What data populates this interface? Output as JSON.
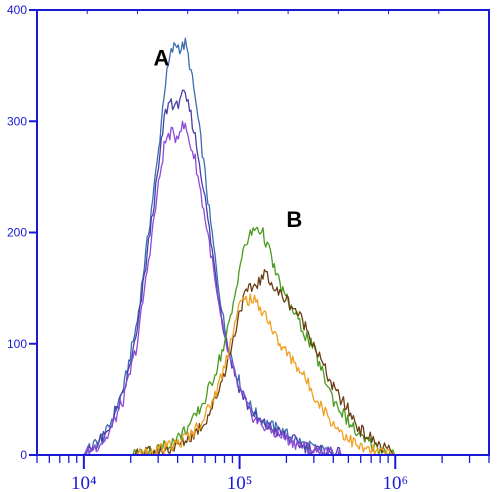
{
  "chart_data": {
    "type": "line",
    "title": "",
    "xlabel": "",
    "ylabel": "",
    "xscale": "log",
    "xlim": [
      5000,
      4000000
    ],
    "ylim": [
      0,
      400
    ],
    "grid": false,
    "legend": "none",
    "axis_color": "#1a1ad6",
    "x_ticks": [
      {
        "value": 10000,
        "label": "10⁴"
      },
      {
        "value": 100000,
        "label": "10⁵"
      },
      {
        "value": 1000000,
        "label": "10⁶"
      }
    ],
    "y_ticks": [
      {
        "value": 0,
        "label": "0"
      },
      {
        "value": 100,
        "label": "100"
      },
      {
        "value": 200,
        "label": "200"
      },
      {
        "value": 300,
        "label": "300"
      },
      {
        "value": 400,
        "label": "400"
      }
    ],
    "annotations": [
      {
        "text": "A",
        "x": 28000,
        "y": 350
      },
      {
        "text": "B",
        "x": 200000,
        "y": 205
      }
    ],
    "series": [
      {
        "color": "#3a6eb0",
        "x": [
          10000,
          14000,
          18000,
          22000,
          26000,
          30000,
          33000,
          36000,
          39000,
          42000,
          45000,
          48000,
          52000,
          58000,
          65000,
          72000,
          80000,
          90000,
          100000,
          115000,
          130000,
          150000,
          180000,
          220000,
          270000,
          350000,
          500000
        ],
        "y": [
          0,
          20,
          60,
          120,
          200,
          270,
          330,
          360,
          370,
          365,
          370,
          350,
          320,
          270,
          210,
          160,
          115,
          85,
          65,
          45,
          35,
          28,
          22,
          15,
          8,
          3,
          0
        ]
      },
      {
        "color": "#4a3ea8",
        "x": [
          10000,
          14000,
          18000,
          22000,
          26000,
          30000,
          33000,
          36000,
          39000,
          42000,
          45000,
          48000,
          52000,
          58000,
          65000,
          72000,
          80000,
          90000,
          100000,
          115000,
          130000,
          150000,
          180000,
          220000,
          270000,
          350000,
          500000
        ],
        "y": [
          0,
          18,
          55,
          110,
          190,
          255,
          305,
          320,
          310,
          325,
          320,
          310,
          285,
          245,
          195,
          150,
          110,
          80,
          60,
          42,
          32,
          26,
          20,
          13,
          7,
          2,
          0
        ]
      },
      {
        "color": "#8e4ad8",
        "x": [
          10000,
          14000,
          18000,
          22000,
          26000,
          30000,
          33000,
          36000,
          39000,
          42000,
          45000,
          48000,
          52000,
          58000,
          65000,
          72000,
          80000,
          90000,
          100000,
          115000,
          130000,
          150000,
          180000,
          220000,
          270000,
          350000,
          500000
        ],
        "y": [
          0,
          15,
          50,
          100,
          175,
          240,
          280,
          290,
          285,
          295,
          295,
          280,
          265,
          225,
          185,
          140,
          105,
          78,
          58,
          40,
          30,
          24,
          18,
          12,
          6,
          2,
          0
        ]
      },
      {
        "color": "#4a9a1e",
        "x": [
          20000,
          30000,
          40000,
          50000,
          60000,
          70000,
          80000,
          90000,
          100000,
          110000,
          120000,
          130000,
          140000,
          150000,
          165000,
          180000,
          200000,
          230000,
          260000,
          300000,
          350000,
          400000,
          500000,
          600000,
          800000,
          1000000
        ],
        "y": [
          0,
          5,
          15,
          30,
          50,
          75,
          100,
          130,
          170,
          190,
          200,
          205,
          200,
          190,
          170,
          155,
          140,
          125,
          110,
          95,
          70,
          50,
          30,
          15,
          5,
          0
        ]
      },
      {
        "color": "#6a3e14",
        "x": [
          20000,
          30000,
          40000,
          50000,
          60000,
          70000,
          80000,
          90000,
          100000,
          110000,
          120000,
          130000,
          140000,
          150000,
          165000,
          180000,
          200000,
          230000,
          260000,
          300000,
          350000,
          400000,
          500000,
          600000,
          800000,
          1000000
        ],
        "y": [
          0,
          3,
          8,
          18,
          30,
          50,
          75,
          100,
          130,
          145,
          150,
          155,
          158,
          165,
          150,
          145,
          140,
          130,
          118,
          100,
          78,
          60,
          40,
          22,
          8,
          0
        ]
      },
      {
        "color": "#f0a020",
        "x": [
          20000,
          30000,
          40000,
          50000,
          60000,
          70000,
          80000,
          90000,
          100000,
          110000,
          120000,
          130000,
          140000,
          150000,
          165000,
          180000,
          200000,
          230000,
          260000,
          300000,
          350000,
          400000,
          500000,
          600000,
          800000,
          1000000
        ],
        "y": [
          0,
          4,
          10,
          20,
          35,
          55,
          80,
          110,
          135,
          140,
          140,
          135,
          130,
          125,
          110,
          100,
          92,
          82,
          70,
          55,
          40,
          28,
          15,
          6,
          2,
          0
        ]
      }
    ]
  }
}
